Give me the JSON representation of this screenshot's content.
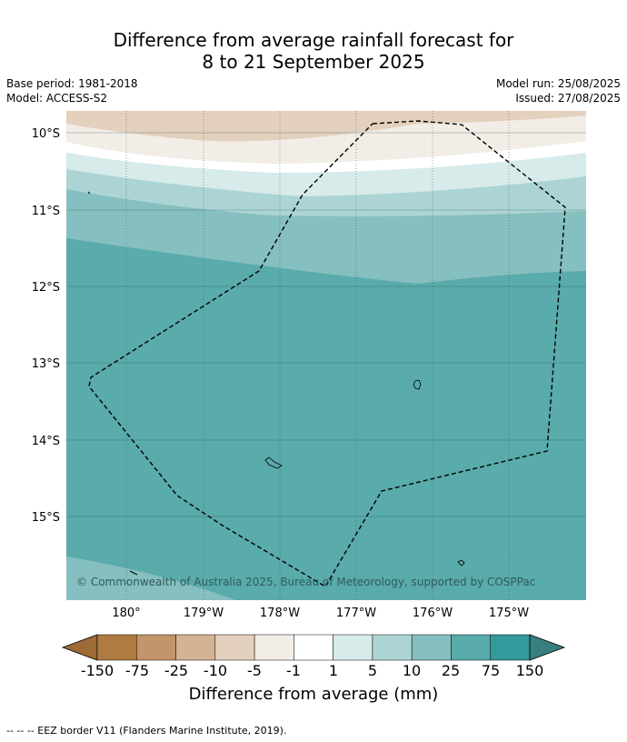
{
  "title_line1": "Difference from average rainfall forecast for",
  "title_line2": "8 to 21 September 2025",
  "base_period": "Base period: 1981-2018",
  "model": "Model: ACCESS-S2",
  "model_run": "Model run: 25/08/2025",
  "issued": "Issued: 27/08/2025",
  "credit": "© Commonwealth of Australia 2025, Bureau of Meteorology, supported by COSPPac",
  "lat_labels": [
    "10°S",
    "11°S",
    "12°S",
    "13°S",
    "14°S",
    "15°S"
  ],
  "lon_labels": [
    "180°",
    "179°W",
    "178°W",
    "177°W",
    "176°W",
    "175°W"
  ],
  "colorbar": {
    "title": "Difference from average (mm)",
    "tick_labels": [
      "-150",
      "-75",
      "-25",
      "-10",
      "-5",
      "-1",
      "1",
      "5",
      "10",
      "25",
      "75",
      "150"
    ],
    "colors": [
      "#9e6a35",
      "#b07a43",
      "#c4956a",
      "#d4b394",
      "#e3d0bd",
      "#f2ede6",
      "#ffffff",
      "#d6ebea",
      "#acd4d4",
      "#86bfbf",
      "#5aabab",
      "#34999a",
      "#3a7f7f"
    ]
  },
  "footer": "--  --  -- EEZ border V11 (Flanders Marine Institute, 2019)."
}
